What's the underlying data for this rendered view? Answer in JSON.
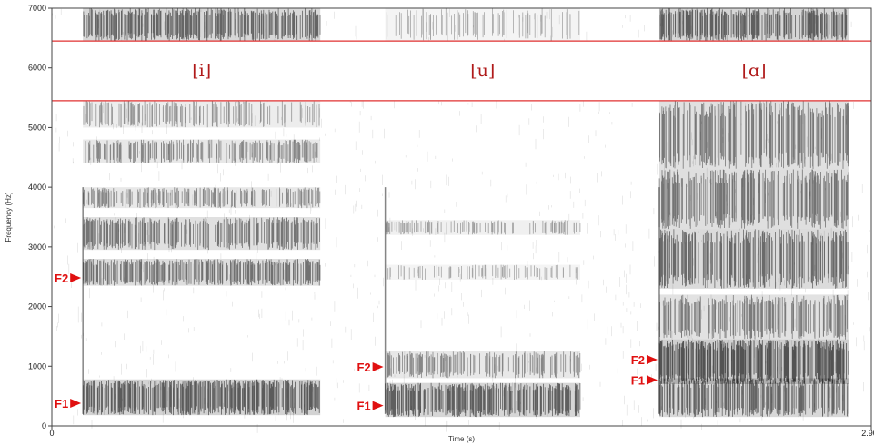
{
  "chart_data": {
    "type": "heatmap",
    "title": "",
    "xlabel": "Time (s)",
    "ylabel": "Frequency (Hz)",
    "xlim": [
      0,
      2.9
    ],
    "ylim": [
      0,
      7000
    ],
    "x_tick_labels": [
      "0",
      "2.90"
    ],
    "y_ticks": [
      0,
      1000,
      2000,
      3000,
      4000,
      5000,
      6000,
      7000
    ],
    "label_band_hz": [
      5450,
      6450
    ],
    "colors": {
      "dark": "#141414",
      "label": "#b01a1a",
      "formant": "#e01010"
    },
    "segments": [
      {
        "vowel": "[i]",
        "start": 0.11,
        "end": 0.95,
        "bands": [
          {
            "lo": 180,
            "hi": 780,
            "dens": 0.85
          },
          {
            "lo": 2350,
            "hi": 2800,
            "dens": 0.65
          },
          {
            "lo": 2950,
            "hi": 3500,
            "dens": 0.6
          },
          {
            "lo": 3650,
            "hi": 4000,
            "dens": 0.45
          },
          {
            "lo": 4400,
            "hi": 4800,
            "dens": 0.45
          },
          {
            "lo": 5000,
            "hi": 5450,
            "dens": 0.35
          },
          {
            "lo": 6450,
            "hi": 7000,
            "dens": 0.75
          }
        ],
        "formants": [
          {
            "label": "F1",
            "hz": 380
          },
          {
            "label": "F2",
            "hz": 2480
          }
        ]
      },
      {
        "vowel": "[u]",
        "start": 1.18,
        "end": 1.87,
        "bands": [
          {
            "lo": 150,
            "hi": 720,
            "dens": 0.8
          },
          {
            "lo": 800,
            "hi": 1250,
            "dens": 0.45
          },
          {
            "lo": 2450,
            "hi": 2700,
            "dens": 0.22
          },
          {
            "lo": 3200,
            "hi": 3450,
            "dens": 0.28
          },
          {
            "lo": 6450,
            "hi": 7000,
            "dens": 0.22
          }
        ],
        "formants": [
          {
            "label": "F1",
            "hz": 340
          },
          {
            "label": "F2",
            "hz": 990
          }
        ]
      },
      {
        "vowel": "[ɑ]",
        "start": 2.15,
        "end": 2.82,
        "bands": [
          {
            "lo": 150,
            "hi": 800,
            "dens": 0.75
          },
          {
            "lo": 700,
            "hi": 1450,
            "dens": 0.92
          },
          {
            "lo": 1450,
            "hi": 2200,
            "dens": 0.55
          },
          {
            "lo": 2300,
            "hi": 3300,
            "dens": 0.7
          },
          {
            "lo": 3300,
            "hi": 4300,
            "dens": 0.62
          },
          {
            "lo": 4300,
            "hi": 5450,
            "dens": 0.58
          },
          {
            "lo": 6450,
            "hi": 7000,
            "dens": 0.8
          }
        ],
        "formants": [
          {
            "label": "F1",
            "hz": 770
          },
          {
            "label": "F2",
            "hz": 1110
          }
        ]
      }
    ]
  }
}
